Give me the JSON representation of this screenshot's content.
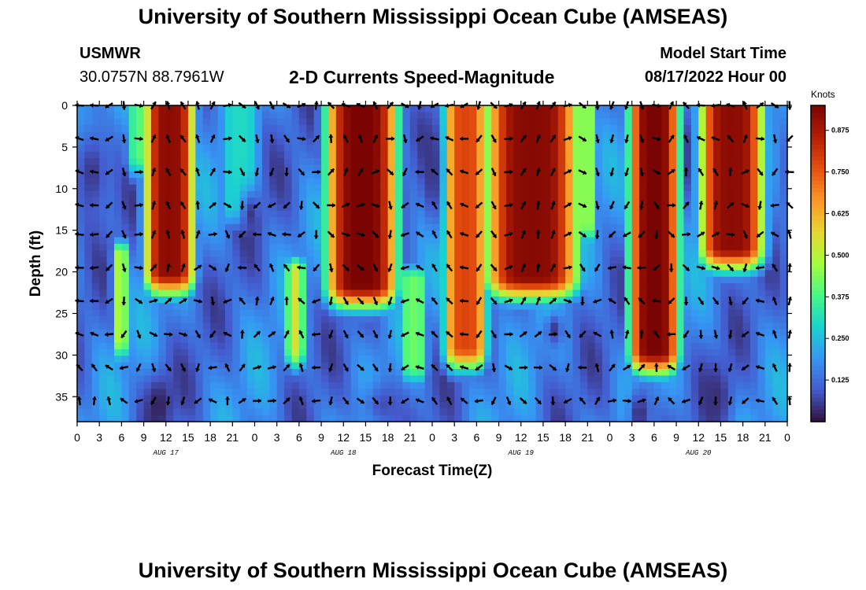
{
  "header": {
    "title": "University of Southern Mississippi Ocean Cube (AMSEAS)",
    "station": "USMWR",
    "coords": "30.0757N  88.7961W",
    "subtitle": "2-D Currents Speed-Magnitude",
    "model_start_label": "Model Start Time",
    "model_start_value": "08/17/2022 Hour 00"
  },
  "footer": {
    "title": "University of Southern Mississippi Ocean Cube (AMSEAS)"
  },
  "chart_data": {
    "type": "heatmap",
    "title": "2-D Currents Speed-Magnitude",
    "xlabel": "Forecast Time(Z)",
    "ylabel": "Depth (ft)",
    "x_range_hours": [
      0,
      96
    ],
    "ylim": [
      0,
      38
    ],
    "x_tick_labels": [
      "0",
      "3",
      "6",
      "9",
      "12",
      "15",
      "18",
      "21",
      "0",
      "3",
      "6",
      "9",
      "12",
      "15",
      "18",
      "21",
      "0",
      "3",
      "6",
      "9",
      "12",
      "15",
      "18",
      "21",
      "0",
      "3",
      "6",
      "9",
      "12",
      "15",
      "18",
      "21",
      "0"
    ],
    "y_ticks": [
      0,
      5,
      10,
      15,
      20,
      25,
      30,
      35
    ],
    "day_labels": [
      {
        "label": "AUG 17",
        "hour": 12
      },
      {
        "label": "AUG 18",
        "hour": 36
      },
      {
        "label": "AUG 19",
        "hour": 60
      },
      {
        "label": "AUG 20",
        "hour": 84
      }
    ],
    "colorbar": {
      "title": "Knots",
      "min": 0.0,
      "max": 0.95,
      "ticks": [
        "0.125",
        "0.250",
        "0.375",
        "0.500",
        "0.625",
        "0.750",
        "0.875"
      ],
      "tick_values": [
        0.125,
        0.25,
        0.375,
        0.5,
        0.625,
        0.75,
        0.875
      ]
    },
    "vector_depths_ft": [
      0,
      4,
      8,
      12,
      15.5,
      19.5,
      23.5,
      27.5,
      31.5,
      35.5
    ],
    "vector_hours_step": 2,
    "speed_features": [
      {
        "hour_center": 12.5,
        "hour_halfwidth": 3.5,
        "depth_top": 0,
        "depth_bottom": 20,
        "peak": 0.92
      },
      {
        "hour_center": 38.5,
        "hour_halfwidth": 5.0,
        "depth_top": 0,
        "depth_bottom": 21.5,
        "peak": 0.95
      },
      {
        "hour_center": 52.5,
        "hour_halfwidth": 3.0,
        "depth_top": 0,
        "depth_bottom": 29.0,
        "peak": 0.78
      },
      {
        "hour_center": 61.5,
        "hour_halfwidth": 6.5,
        "depth_top": 0,
        "depth_bottom": 20.5,
        "peak": 0.93
      },
      {
        "hour_center": 78.0,
        "hour_halfwidth": 3.5,
        "depth_top": 0,
        "depth_bottom": 29.5,
        "peak": 0.95
      },
      {
        "hour_center": 88.5,
        "hour_halfwidth": 4.5,
        "depth_top": 0,
        "depth_bottom": 17.0,
        "peak": 0.92
      },
      {
        "hour_center": 5.8,
        "hour_halfwidth": 1.2,
        "depth_top": 18,
        "depth_bottom": 28,
        "peak": 0.48
      },
      {
        "hour_center": 29.5,
        "hour_halfwidth": 1.3,
        "depth_top": 20,
        "depth_bottom": 29,
        "peak": 0.55
      },
      {
        "hour_center": 9.0,
        "hour_halfwidth": 2.5,
        "depth_top": 0,
        "depth_bottom": 6,
        "peak": 0.4
      },
      {
        "hour_center": 22.0,
        "hour_halfwidth": 3.0,
        "depth_top": 0,
        "depth_bottom": 12,
        "peak": 0.3
      },
      {
        "hour_center": 45.5,
        "hour_halfwidth": 2.0,
        "depth_top": 21,
        "depth_bottom": 31,
        "peak": 0.42
      },
      {
        "hour_center": 69.0,
        "hour_halfwidth": 1.5,
        "depth_top": 0,
        "depth_bottom": 14,
        "peak": 0.45
      }
    ],
    "calm_regions": [
      {
        "hour_center": 2.0,
        "depth_center": 8,
        "hour_halfwidth": 2.5,
        "depth_halfwidth": 6,
        "value": 0.05
      },
      {
        "hour_center": 11.0,
        "depth_center": 36,
        "hour_halfwidth": 2.0,
        "depth_halfwidth": 4,
        "value": 0.02
      },
      {
        "hour_center": 23.5,
        "depth_center": 13,
        "hour_halfwidth": 1.5,
        "depth_halfwidth": 3,
        "value": 0.05
      },
      {
        "hour_center": 48.0,
        "depth_center": 8,
        "hour_halfwidth": 1.2,
        "depth_halfwidth": 6,
        "value": 0.05
      },
      {
        "hour_center": 76.0,
        "depth_center": 37,
        "hour_halfwidth": 1.5,
        "depth_halfwidth": 3,
        "value": 0.03
      },
      {
        "hour_center": 86.5,
        "depth_center": 35,
        "hour_halfwidth": 2.0,
        "depth_halfwidth": 4,
        "value": 0.04
      },
      {
        "hour_center": 64.5,
        "depth_center": 27,
        "hour_halfwidth": 1.2,
        "depth_halfwidth": 2,
        "value": 0.05
      },
      {
        "hour_center": 41.5,
        "depth_center": 36,
        "hour_halfwidth": 3.0,
        "depth_halfwidth": 3,
        "value": 0.08
      }
    ],
    "background_speed": 0.15
  }
}
